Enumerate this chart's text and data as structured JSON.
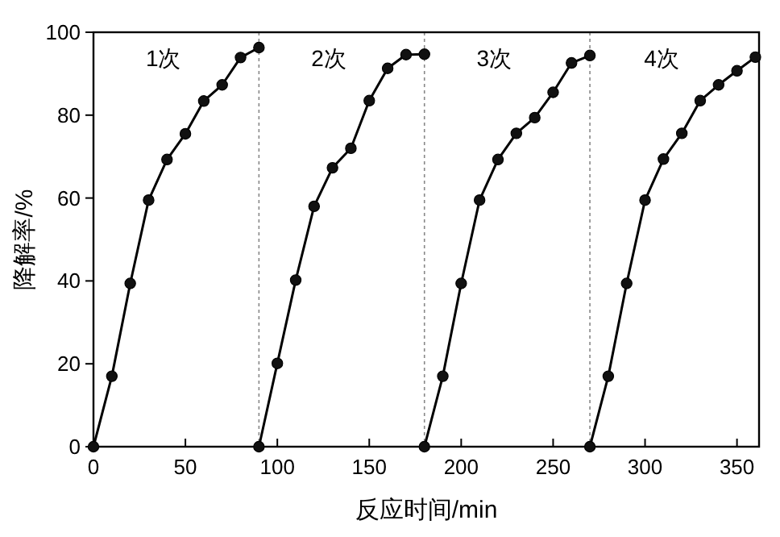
{
  "chart_data": {
    "type": "line",
    "xlabel": "反应时间/min",
    "ylabel": "降解率/%",
    "xlim": [
      0,
      362
    ],
    "ylim": [
      0,
      100
    ],
    "xticks": [
      0,
      50,
      100,
      150,
      200,
      250,
      300,
      350
    ],
    "yticks": [
      0,
      20,
      40,
      60,
      80,
      100
    ],
    "grid": false,
    "marker": "circle",
    "line_style": "solid",
    "series": [
      {
        "color": "#000000",
        "x": [
          0,
          10,
          20,
          30,
          40,
          50,
          60,
          70,
          80,
          90
        ],
        "values": [
          0,
          17,
          39.4,
          59.5,
          69.3,
          75.5,
          83.4,
          87.3,
          93.9,
          96.3
        ]
      },
      {
        "color": "#000000",
        "x": [
          90,
          100,
          110,
          120,
          130,
          140,
          150,
          160,
          170,
          180
        ],
        "values": [
          0,
          20.1,
          40.2,
          58,
          67.3,
          72,
          83.5,
          91.3,
          94.6,
          94.7
        ]
      },
      {
        "color": "#000000",
        "x": [
          180,
          190,
          200,
          210,
          220,
          230,
          240,
          250,
          260,
          270
        ],
        "values": [
          0,
          17,
          39.4,
          59.5,
          69.3,
          75.6,
          79.4,
          85.5,
          92.6,
          94.4
        ]
      },
      {
        "color": "#000000",
        "x": [
          270,
          280,
          290,
          300,
          310,
          320,
          330,
          340,
          350,
          360
        ],
        "values": [
          0,
          17,
          39.4,
          59.5,
          69.4,
          75.6,
          83.5,
          87.3,
          90.7,
          94
        ]
      }
    ],
    "ref_lines": [
      {
        "axis": "x",
        "value": 90,
        "line_style": "dotted",
        "color": "#888888"
      },
      {
        "axis": "x",
        "value": 180,
        "line_style": "dotted",
        "color": "#888888"
      },
      {
        "axis": "x",
        "value": 270,
        "line_style": "dotted",
        "color": "#888888"
      }
    ],
    "annotations": [
      "1次",
      "2次",
      "3次",
      "4次"
    ]
  }
}
